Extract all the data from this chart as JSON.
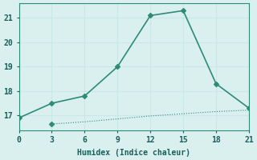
{
  "xlabel": "Humidex (Indice chaleur)",
  "line1_x": [
    0,
    3,
    6,
    9,
    12,
    15,
    18,
    21
  ],
  "line1_y": [
    16.9,
    17.5,
    17.8,
    19.0,
    21.1,
    21.3,
    18.3,
    17.3
  ],
  "line2_x": [
    3,
    4,
    5,
    6,
    7,
    8,
    9,
    10,
    11,
    12,
    13,
    14,
    15,
    16,
    17,
    18,
    19,
    20,
    21
  ],
  "line2_y": [
    16.65,
    16.68,
    16.71,
    16.74,
    16.78,
    16.82,
    16.86,
    16.9,
    16.94,
    16.98,
    17.01,
    17.04,
    17.07,
    17.1,
    17.13,
    17.16,
    17.18,
    17.2,
    17.22
  ],
  "line_color": "#2e8b74",
  "bg_color": "#d9f0ef",
  "grid_color": "#c8e8e6",
  "xlim": [
    0,
    21
  ],
  "ylim": [
    16.4,
    21.6
  ],
  "xticks": [
    0,
    3,
    6,
    9,
    12,
    15,
    18,
    21
  ],
  "yticks": [
    17,
    18,
    19,
    20,
    21
  ],
  "marker": "D",
  "markersize": 3,
  "linewidth1": 1.2,
  "linewidth2": 0.8
}
